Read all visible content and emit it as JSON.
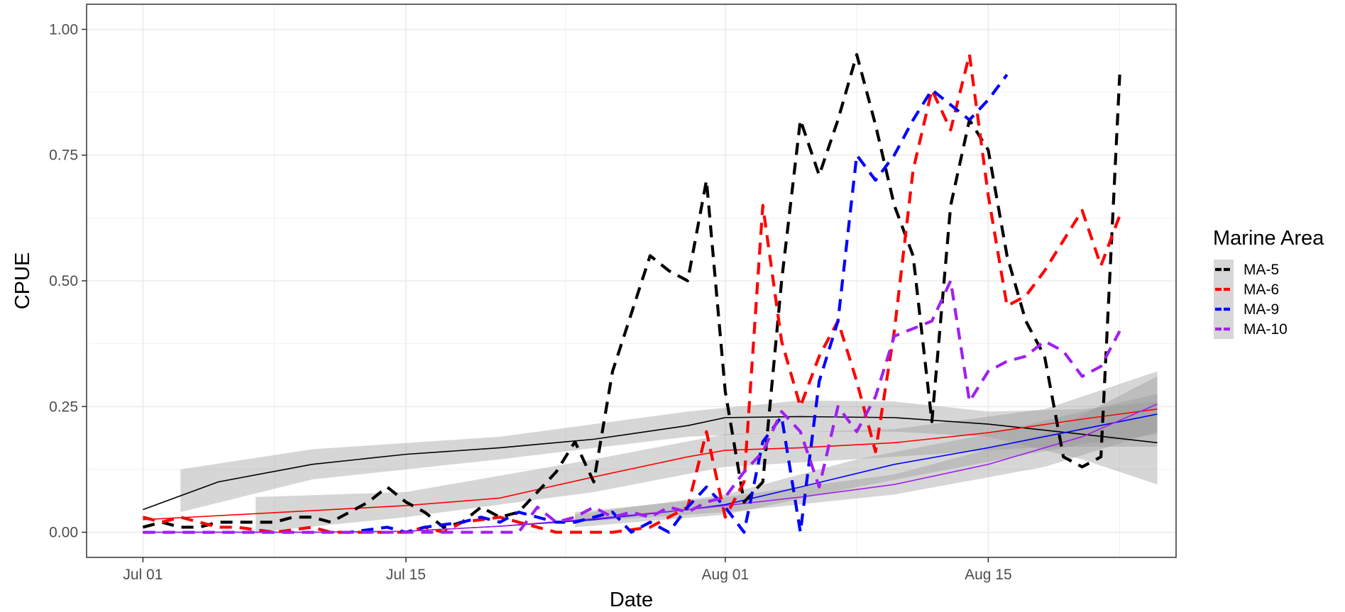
{
  "chart_data": {
    "type": "line",
    "xlabel": "Date",
    "ylabel": "CPUE",
    "xlim": [
      "2021-06-28",
      "2021-08-25"
    ],
    "ylim": [
      -0.05,
      1.05
    ],
    "x_ticks": [
      {
        "date": "2021-07-01",
        "label": "Jul 01"
      },
      {
        "date": "2021-07-15",
        "label": "Jul 15"
      },
      {
        "date": "2021-08-01",
        "label": "Aug 01"
      },
      {
        "date": "2021-08-15",
        "label": "Aug 15"
      }
    ],
    "y_ticks": [
      {
        "value": 0.0,
        "label": "0.00"
      },
      {
        "value": 0.25,
        "label": "0.25"
      },
      {
        "value": 0.5,
        "label": "0.50"
      },
      {
        "value": 0.75,
        "label": "0.75"
      },
      {
        "value": 1.0,
        "label": "1.00"
      }
    ],
    "grid": true,
    "legend": {
      "title": "Marine Area",
      "position": "right"
    },
    "series": [
      {
        "name": "MA-5",
        "color": "#000000",
        "points": [
          [
            "2021-07-01",
            0.01
          ],
          [
            "2021-07-02",
            0.02
          ],
          [
            "2021-07-03",
            0.01
          ],
          [
            "2021-07-04",
            0.01
          ],
          [
            "2021-07-05",
            0.02
          ],
          [
            "2021-07-07",
            0.02
          ],
          [
            "2021-07-08",
            0.02
          ],
          [
            "2021-07-09",
            0.03
          ],
          [
            "2021-07-10",
            0.03
          ],
          [
            "2021-07-11",
            0.02
          ],
          [
            "2021-07-12",
            0.04
          ],
          [
            "2021-07-13",
            0.06
          ],
          [
            "2021-07-14",
            0.09
          ],
          [
            "2021-07-15",
            0.06
          ],
          [
            "2021-07-16",
            0.04
          ],
          [
            "2021-07-17",
            0.01
          ],
          [
            "2021-07-18",
            0.02
          ],
          [
            "2021-07-19",
            0.05
          ],
          [
            "2021-07-20",
            0.03
          ],
          [
            "2021-07-21",
            0.04
          ],
          [
            "2021-07-22",
            0.08
          ],
          [
            "2021-07-23",
            0.12
          ],
          [
            "2021-07-24",
            0.18
          ],
          [
            "2021-07-25",
            0.1
          ],
          [
            "2021-07-26",
            0.32
          ],
          [
            "2021-07-28",
            0.55
          ],
          [
            "2021-07-29",
            0.52
          ],
          [
            "2021-07-30",
            0.5
          ],
          [
            "2021-07-31",
            0.7
          ],
          [
            "2021-08-01",
            0.28
          ],
          [
            "2021-08-02",
            0.06
          ],
          [
            "2021-08-03",
            0.1
          ],
          [
            "2021-08-04",
            0.5
          ],
          [
            "2021-08-05",
            0.82
          ],
          [
            "2021-08-06",
            0.71
          ],
          [
            "2021-08-07",
            0.82
          ],
          [
            "2021-08-08",
            0.95
          ],
          [
            "2021-08-09",
            0.81
          ],
          [
            "2021-08-10",
            0.65
          ],
          [
            "2021-08-11",
            0.55
          ],
          [
            "2021-08-12",
            0.22
          ],
          [
            "2021-08-13",
            0.65
          ],
          [
            "2021-08-14",
            0.82
          ],
          [
            "2021-08-15",
            0.76
          ],
          [
            "2021-08-16",
            0.55
          ],
          [
            "2021-08-17",
            0.42
          ],
          [
            "2021-08-18",
            0.35
          ],
          [
            "2021-08-19",
            0.15
          ],
          [
            "2021-08-20",
            0.13
          ],
          [
            "2021-08-21",
            0.15
          ],
          [
            "2021-08-22",
            0.91
          ]
        ],
        "smooth": [
          [
            "2021-07-01",
            0.045
          ],
          [
            "2021-07-05",
            0.1
          ],
          [
            "2021-07-10",
            0.135
          ],
          [
            "2021-07-15",
            0.155
          ],
          [
            "2021-07-20",
            0.168
          ],
          [
            "2021-07-25",
            0.185
          ],
          [
            "2021-07-30",
            0.212
          ],
          [
            "2021-08-01",
            0.228
          ],
          [
            "2021-08-05",
            0.23
          ],
          [
            "2021-08-10",
            0.228
          ],
          [
            "2021-08-15",
            0.215
          ],
          [
            "2021-08-20",
            0.195
          ],
          [
            "2021-08-24",
            0.178
          ]
        ],
        "band": [
          [
            "2021-07-03",
            0.04,
            0.125
          ],
          [
            "2021-07-10",
            0.105,
            0.165
          ],
          [
            "2021-07-20",
            0.145,
            0.19
          ],
          [
            "2021-07-30",
            0.19,
            0.24
          ],
          [
            "2021-08-05",
            0.2,
            0.262
          ],
          [
            "2021-08-10",
            0.2,
            0.26
          ],
          [
            "2021-08-15",
            0.19,
            0.24
          ],
          [
            "2021-08-20",
            0.145,
            0.245
          ],
          [
            "2021-08-24",
            0.095,
            0.26
          ]
        ]
      },
      {
        "name": "MA-6",
        "color": "#ff0000",
        "points": [
          [
            "2021-07-01",
            0.03
          ],
          [
            "2021-07-02",
            0.02
          ],
          [
            "2021-07-03",
            0.03
          ],
          [
            "2021-07-04",
            0.02
          ],
          [
            "2021-07-05",
            0.01
          ],
          [
            "2021-07-06",
            0.01
          ],
          [
            "2021-07-08",
            0.0
          ],
          [
            "2021-07-10",
            0.01
          ],
          [
            "2021-07-11",
            0.0
          ],
          [
            "2021-07-13",
            0.0
          ],
          [
            "2021-07-15",
            0.0
          ],
          [
            "2021-07-16",
            0.01
          ],
          [
            "2021-07-17",
            0.0
          ],
          [
            "2021-07-18",
            0.02
          ],
          [
            "2021-07-20",
            0.03
          ],
          [
            "2021-07-21",
            0.02
          ],
          [
            "2021-07-22",
            0.01
          ],
          [
            "2021-07-23",
            0.0
          ],
          [
            "2021-07-24",
            0.0
          ],
          [
            "2021-07-25",
            0.0
          ],
          [
            "2021-07-26",
            0.0
          ],
          [
            "2021-07-28",
            0.01
          ],
          [
            "2021-07-29",
            0.03
          ],
          [
            "2021-07-30",
            0.05
          ],
          [
            "2021-07-31",
            0.2
          ],
          [
            "2021-08-01",
            0.03
          ],
          [
            "2021-08-02",
            0.1
          ],
          [
            "2021-08-03",
            0.65
          ],
          [
            "2021-08-04",
            0.38
          ],
          [
            "2021-08-05",
            0.25
          ],
          [
            "2021-08-06",
            0.35
          ],
          [
            "2021-08-07",
            0.42
          ],
          [
            "2021-08-08",
            0.3
          ],
          [
            "2021-08-09",
            0.16
          ],
          [
            "2021-08-10",
            0.4
          ],
          [
            "2021-08-11",
            0.72
          ],
          [
            "2021-08-12",
            0.88
          ],
          [
            "2021-08-13",
            0.8
          ],
          [
            "2021-08-14",
            0.95
          ],
          [
            "2021-08-15",
            0.67
          ],
          [
            "2021-08-16",
            0.45
          ],
          [
            "2021-08-17",
            0.47
          ],
          [
            "2021-08-18",
            0.52
          ],
          [
            "2021-08-19",
            0.58
          ],
          [
            "2021-08-20",
            0.64
          ],
          [
            "2021-08-21",
            0.53
          ],
          [
            "2021-08-22",
            0.63
          ]
        ],
        "smooth": [
          [
            "2021-07-01",
            0.025
          ],
          [
            "2021-07-05",
            0.033
          ],
          [
            "2021-07-10",
            0.043
          ],
          [
            "2021-07-15",
            0.053
          ],
          [
            "2021-07-20",
            0.068
          ],
          [
            "2021-07-25",
            0.11
          ],
          [
            "2021-07-30",
            0.15
          ],
          [
            "2021-08-01",
            0.163
          ],
          [
            "2021-08-05",
            0.168
          ],
          [
            "2021-08-10",
            0.178
          ],
          [
            "2021-08-15",
            0.198
          ],
          [
            "2021-08-20",
            0.225
          ],
          [
            "2021-08-24",
            0.245
          ]
        ],
        "band": [
          [
            "2021-07-07",
            0.0,
            0.07
          ],
          [
            "2021-07-15",
            0.03,
            0.08
          ],
          [
            "2021-07-25",
            0.08,
            0.145
          ],
          [
            "2021-08-01",
            0.13,
            0.195
          ],
          [
            "2021-08-10",
            0.15,
            0.205
          ],
          [
            "2021-08-18",
            0.17,
            0.245
          ],
          [
            "2021-08-24",
            0.17,
            0.32
          ]
        ]
      },
      {
        "name": "MA-9",
        "color": "#0000ff",
        "points": [
          [
            "2021-07-01",
            0.0
          ],
          [
            "2021-07-05",
            0.0
          ],
          [
            "2021-07-10",
            0.0
          ],
          [
            "2021-07-12",
            0.0
          ],
          [
            "2021-07-14",
            0.01
          ],
          [
            "2021-07-15",
            0.0
          ],
          [
            "2021-07-16",
            0.01
          ],
          [
            "2021-07-18",
            0.02
          ],
          [
            "2021-07-19",
            0.03
          ],
          [
            "2021-07-20",
            0.02
          ],
          [
            "2021-07-21",
            0.04
          ],
          [
            "2021-07-22",
            0.03
          ],
          [
            "2021-07-23",
            0.02
          ],
          [
            "2021-07-24",
            0.02
          ],
          [
            "2021-07-25",
            0.03
          ],
          [
            "2021-07-26",
            0.04
          ],
          [
            "2021-07-27",
            0.0
          ],
          [
            "2021-07-28",
            0.02
          ],
          [
            "2021-07-29",
            0.0
          ],
          [
            "2021-07-30",
            0.05
          ],
          [
            "2021-07-31",
            0.09
          ],
          [
            "2021-08-01",
            0.05
          ],
          [
            "2021-08-02",
            0.0
          ],
          [
            "2021-08-03",
            0.18
          ],
          [
            "2021-08-04",
            0.23
          ],
          [
            "2021-08-05",
            0.0
          ],
          [
            "2021-08-06",
            0.3
          ],
          [
            "2021-08-07",
            0.42
          ],
          [
            "2021-08-08",
            0.75
          ],
          [
            "2021-08-09",
            0.7
          ],
          [
            "2021-08-10",
            0.75
          ],
          [
            "2021-08-11",
            0.82
          ],
          [
            "2021-08-12",
            0.88
          ],
          [
            "2021-08-14",
            0.82
          ],
          [
            "2021-08-15",
            0.86
          ],
          [
            "2021-08-16",
            0.91
          ]
        ],
        "smooth": [
          [
            "2021-07-01",
            0.0
          ],
          [
            "2021-07-10",
            0.0
          ],
          [
            "2021-07-15",
            0.002
          ],
          [
            "2021-07-20",
            0.012
          ],
          [
            "2021-07-25",
            0.025
          ],
          [
            "2021-07-30",
            0.045
          ],
          [
            "2021-08-01",
            0.055
          ],
          [
            "2021-08-05",
            0.09
          ],
          [
            "2021-08-10",
            0.135
          ],
          [
            "2021-08-15",
            0.168
          ],
          [
            "2021-08-20",
            0.205
          ],
          [
            "2021-08-24",
            0.235
          ]
        ],
        "band": [
          [
            "2021-07-24",
            0.01,
            0.035
          ],
          [
            "2021-08-01",
            0.035,
            0.075
          ],
          [
            "2021-08-08",
            0.09,
            0.145
          ],
          [
            "2021-08-15",
            0.14,
            0.195
          ],
          [
            "2021-08-20",
            0.175,
            0.24
          ],
          [
            "2021-08-24",
            0.195,
            0.275
          ]
        ]
      },
      {
        "name": "MA-10",
        "color": "#a020f0",
        "points": [
          [
            "2021-07-01",
            0.0
          ],
          [
            "2021-07-05",
            0.0
          ],
          [
            "2021-07-10",
            0.0
          ],
          [
            "2021-07-15",
            0.0
          ],
          [
            "2021-07-20",
            0.0
          ],
          [
            "2021-07-21",
            0.0
          ],
          [
            "2021-07-22",
            0.05
          ],
          [
            "2021-07-23",
            0.02
          ],
          [
            "2021-07-24",
            0.03
          ],
          [
            "2021-07-25",
            0.05
          ],
          [
            "2021-07-26",
            0.03
          ],
          [
            "2021-07-27",
            0.04
          ],
          [
            "2021-07-28",
            0.03
          ],
          [
            "2021-07-29",
            0.05
          ],
          [
            "2021-07-30",
            0.04
          ],
          [
            "2021-07-31",
            0.06
          ],
          [
            "2021-08-01",
            0.07
          ],
          [
            "2021-08-02",
            0.12
          ],
          [
            "2021-08-03",
            0.16
          ],
          [
            "2021-08-04",
            0.24
          ],
          [
            "2021-08-05",
            0.2
          ],
          [
            "2021-08-06",
            0.09
          ],
          [
            "2021-08-07",
            0.25
          ],
          [
            "2021-08-08",
            0.2
          ],
          [
            "2021-08-09",
            0.27
          ],
          [
            "2021-08-10",
            0.39
          ],
          [
            "2021-08-12",
            0.42
          ],
          [
            "2021-08-13",
            0.5
          ],
          [
            "2021-08-14",
            0.26
          ],
          [
            "2021-08-15",
            0.32
          ],
          [
            "2021-08-16",
            0.34
          ],
          [
            "2021-08-17",
            0.35
          ],
          [
            "2021-08-18",
            0.38
          ],
          [
            "2021-08-19",
            0.36
          ],
          [
            "2021-08-20",
            0.31
          ],
          [
            "2021-08-21",
            0.33
          ],
          [
            "2021-08-22",
            0.4
          ]
        ],
        "smooth": [
          [
            "2021-07-01",
            0.0
          ],
          [
            "2021-07-10",
            0.0
          ],
          [
            "2021-07-15",
            0.002
          ],
          [
            "2021-07-20",
            0.012
          ],
          [
            "2021-07-25",
            0.027
          ],
          [
            "2021-07-30",
            0.045
          ],
          [
            "2021-08-01",
            0.053
          ],
          [
            "2021-08-05",
            0.07
          ],
          [
            "2021-08-10",
            0.095
          ],
          [
            "2021-08-15",
            0.135
          ],
          [
            "2021-08-20",
            0.19
          ],
          [
            "2021-08-24",
            0.255
          ]
        ],
        "band": [
          [
            "2021-07-24",
            0.02,
            0.04
          ],
          [
            "2021-08-01",
            0.04,
            0.07
          ],
          [
            "2021-08-10",
            0.075,
            0.115
          ],
          [
            "2021-08-18",
            0.13,
            0.195
          ],
          [
            "2021-08-24",
            0.2,
            0.31
          ]
        ]
      }
    ]
  }
}
